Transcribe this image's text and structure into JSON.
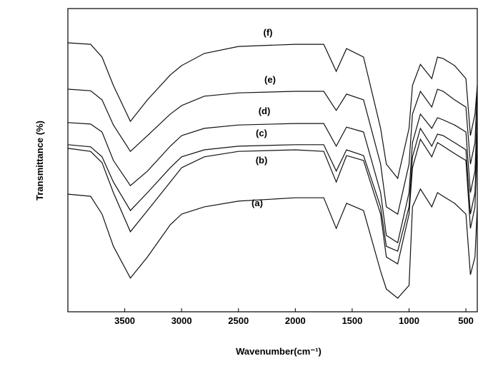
{
  "chart_data": {
    "type": "line",
    "x_label": "Wavenumber(cm⁻¹)",
    "y_label": "Transmittance (%)",
    "x": [
      4000,
      3800,
      3700,
      3600,
      3450,
      3300,
      3100,
      3000,
      2800,
      2500,
      2000,
      1750,
      1640,
      1550,
      1400,
      1250,
      1200,
      1100,
      1000,
      970,
      900,
      800,
      750,
      700,
      600,
      500,
      460,
      420,
      400
    ],
    "xlim": [
      4000,
      400
    ],
    "xticks": [
      3500,
      3000,
      2500,
      2000,
      1500,
      1000,
      500
    ],
    "ylim": [
      0,
      100
    ],
    "series": [
      {
        "name": "(f)",
        "color": "#111111",
        "values": [
          88.7,
          88.2,
          84.0,
          74.6,
          62.8,
          69.9,
          78.1,
          81.2,
          85.2,
          87.5,
          88.2,
          88.2,
          79.3,
          86.8,
          84.0,
          60.5,
          48.7,
          44.0,
          60.5,
          74.6,
          81.6,
          76.9,
          84.0,
          83.5,
          81.2,
          76.9,
          58.1,
          65.2,
          74.6
        ]
      },
      {
        "name": "(e)",
        "color": "#111111",
        "values": [
          73.4,
          72.9,
          69.9,
          61.6,
          52.9,
          58.1,
          65.2,
          68.0,
          71.1,
          72.2,
          72.7,
          72.7,
          66.4,
          71.8,
          69.9,
          48.7,
          34.6,
          32.2,
          48.7,
          65.2,
          72.7,
          67.5,
          73.4,
          72.7,
          69.9,
          67.5,
          48.7,
          55.8,
          74.6
        ]
      },
      {
        "name": "(d)",
        "color": "#111111",
        "values": [
          62.4,
          61.9,
          59.3,
          49.9,
          41.6,
          46.4,
          54.6,
          58.1,
          60.5,
          61.6,
          62.1,
          62.1,
          54.6,
          60.9,
          59.3,
          39.3,
          25.2,
          22.8,
          39.3,
          55.8,
          65.2,
          60.5,
          64.0,
          63.3,
          61.6,
          59.3,
          39.3,
          46.4,
          67.5
        ]
      },
      {
        "name": "(c)",
        "color": "#111111",
        "values": [
          55.1,
          54.4,
          51.1,
          42.8,
          33.4,
          39.3,
          47.5,
          51.1,
          53.4,
          54.6,
          55.1,
          55.1,
          46.4,
          53.4,
          51.5,
          34.6,
          21.6,
          20.0,
          34.6,
          51.1,
          60.5,
          54.6,
          58.6,
          58.1,
          55.8,
          53.4,
          32.2,
          39.3,
          60.5
        ]
      },
      {
        "name": "(b)",
        "color": "#111111",
        "values": [
          53.9,
          52.9,
          49.2,
          39.3,
          26.4,
          33.4,
          42.8,
          47.5,
          51.1,
          52.9,
          53.4,
          52.9,
          42.8,
          51.5,
          49.9,
          32.2,
          18.1,
          15.8,
          32.2,
          47.5,
          56.9,
          51.1,
          55.8,
          54.6,
          52.2,
          49.9,
          27.5,
          34.6,
          55.8
        ]
      },
      {
        "name": "(a)",
        "color": "#111111",
        "values": [
          38.8,
          38.1,
          32.2,
          21.6,
          11.1,
          18.1,
          28.7,
          32.2,
          34.6,
          36.5,
          37.6,
          37.6,
          27.5,
          35.8,
          33.4,
          13.4,
          7.5,
          4.5,
          8.7,
          34.6,
          40.5,
          34.6,
          39.3,
          38.1,
          35.8,
          32.2,
          12.2,
          18.1,
          34.6
        ]
      }
    ]
  }
}
